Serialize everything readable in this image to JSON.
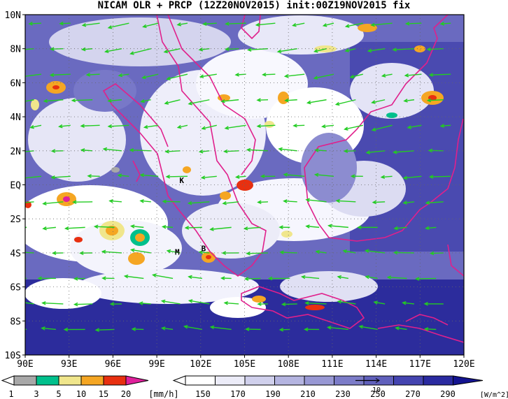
{
  "title": "NICAM OLR + PRCP (12Z20NOV2015) init:00Z19NOV2015 fix",
  "axes": {
    "lon_labels": [
      "90E",
      "93E",
      "96E",
      "99E",
      "102E",
      "105E",
      "108E",
      "111E",
      "114E",
      "117E",
      "120E"
    ],
    "lat_labels": [
      "10N",
      "8N",
      "6N",
      "4N",
      "2N",
      "EQ",
      "2S",
      "4S",
      "6S",
      "8S",
      "10S"
    ]
  },
  "place_labels": [
    {
      "text": "K",
      "lon": 100.7,
      "lat": 0.1
    },
    {
      "text": "M",
      "lon": 100.4,
      "lat": -4.1
    },
    {
      "text": "B",
      "lon": 102.2,
      "lat": -3.9
    }
  ],
  "prcp_colorbar": {
    "ticks": [
      "1",
      "3",
      "5",
      "10",
      "15",
      "20"
    ],
    "unit": "[mm/h]",
    "colors": [
      "#a8a8a8",
      "#00c08c",
      "#f0e68c",
      "#f5a623",
      "#e83010",
      "#e0209c"
    ]
  },
  "olr_colorbar": {
    "ticks": [
      "150",
      "170",
      "190",
      "210",
      "230",
      "250",
      "270",
      "290"
    ],
    "unit": "[W/m^2]",
    "colors": [
      "#ffffff",
      "#ececf8",
      "#d0d0ec",
      "#b4b4e0",
      "#9898d4",
      "#7c7cc8",
      "#6060bc",
      "#4444b0",
      "#2a2aa0",
      "#141490"
    ]
  },
  "vector_ref": {
    "label": "10"
  },
  "colors": {
    "coast": "#e0208c",
    "wind": "#22cc22",
    "ocean_deep": "#1c1c8c"
  }
}
